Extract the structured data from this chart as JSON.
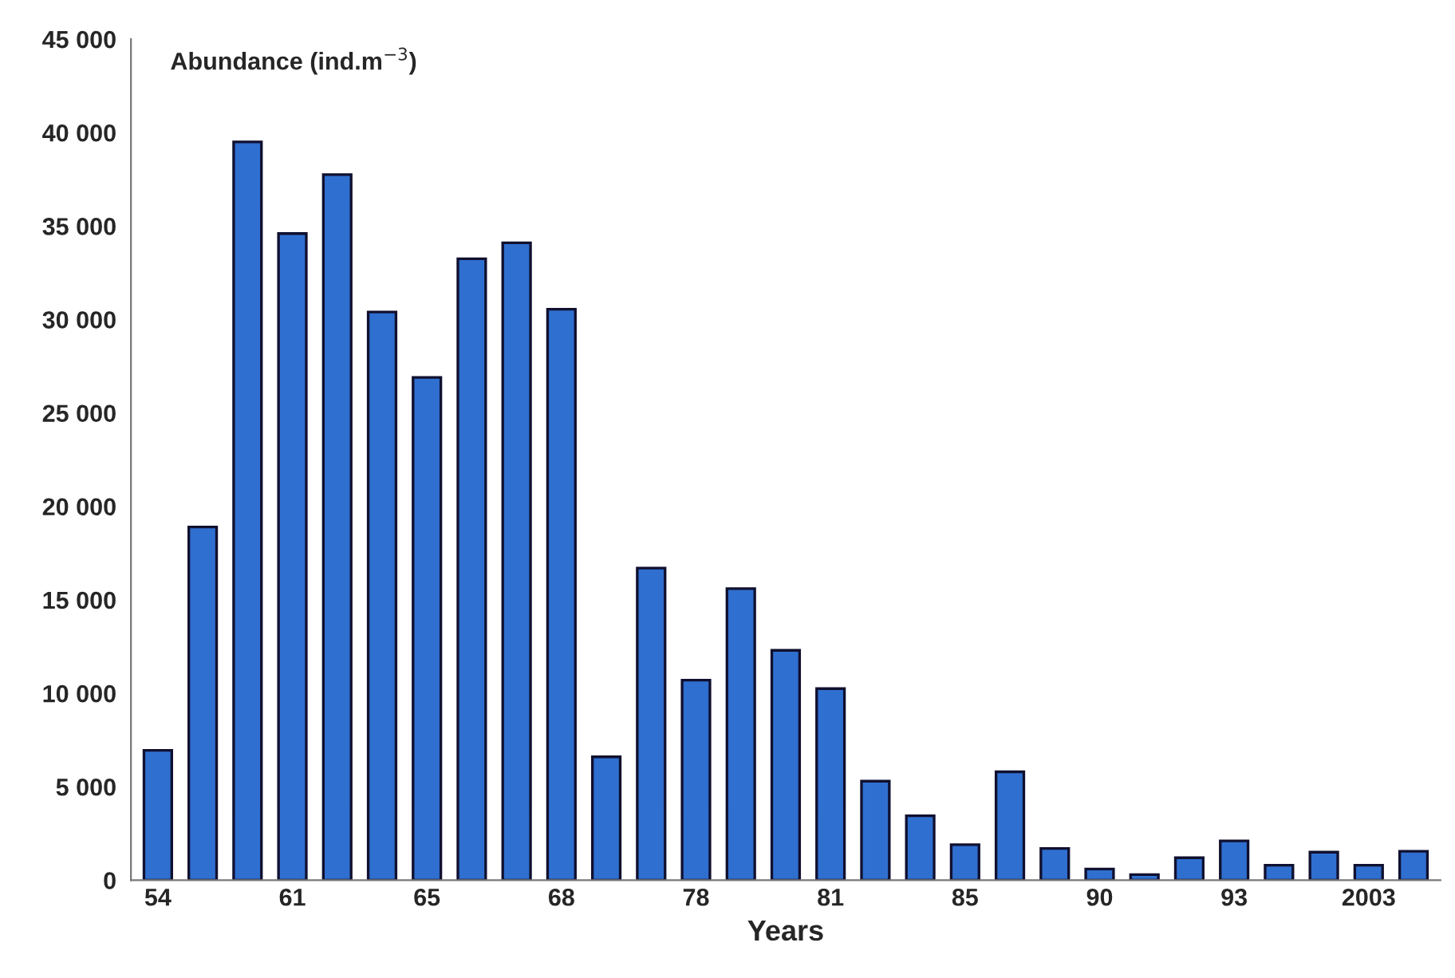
{
  "chart_data": {
    "type": "bar",
    "ylabel": "Abundance (ind.m$^{−3}$)",
    "xlabel": "Years",
    "categories": [
      "54",
      null,
      null,
      "61",
      null,
      null,
      "65",
      null,
      null,
      "68",
      null,
      null,
      "78",
      null,
      null,
      "81",
      null,
      null,
      "85",
      null,
      null,
      "90",
      null,
      null,
      "93",
      null,
      null,
      "2003",
      null
    ],
    "values": [
      6950,
      18900,
      39500,
      34600,
      37750,
      30400,
      26900,
      33250,
      34100,
      30550,
      6600,
      16700,
      10700,
      15600,
      12300,
      10250,
      5300,
      3450,
      1900,
      5800,
      1700,
      600,
      300,
      1200,
      2100,
      800,
      1500,
      800,
      1550
    ],
    "color": "#2f6fcf",
    "ylim": [
      0,
      45000
    ],
    "yticks": [
      {
        "value": 0,
        "label": "0"
      },
      {
        "value": 5000,
        "label": "5 000"
      },
      {
        "value": 10000,
        "label": "10 000"
      },
      {
        "value": 15000,
        "label": "15 000"
      },
      {
        "value": 20000,
        "label": "20 000"
      },
      {
        "value": 25000,
        "label": "25 000"
      },
      {
        "value": 30000,
        "label": "30 000"
      },
      {
        "value": 35000,
        "label": "35 000"
      },
      {
        "value": 40000,
        "label": "40 000"
      },
      {
        "value": 45000,
        "label": "45 000"
      }
    ],
    "grid": false,
    "legend": false
  }
}
